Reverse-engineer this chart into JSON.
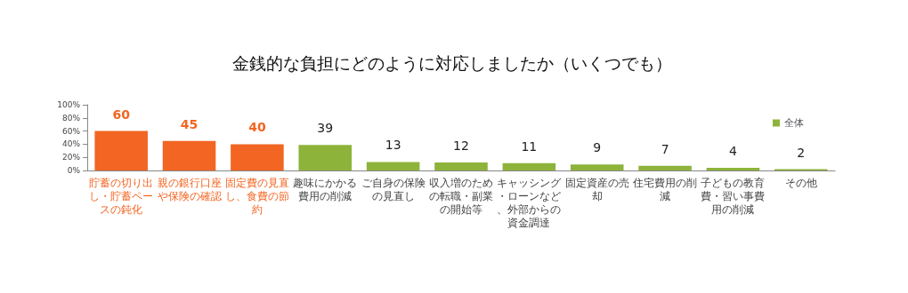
{
  "chart_data": {
    "type": "bar",
    "title": "金銭的な負担にどのように対応しましたか（いくつでも）",
    "categories": [
      "貯蓄の切り出し・貯蓄ペースの鈍化",
      "親の銀行口座や保険の確認",
      "固定費の見直し、食費の節約",
      "趣味にかかる費用の削減",
      "ご自身の保険の見直し",
      "収入増のための転職・副業の開始等",
      "キャッシング・ローンなど、外部からの資金調達",
      "固定資産の売却",
      "住宅費用の削減",
      "子どもの教育費・習い事費用の削減",
      "その他"
    ],
    "series": [
      {
        "name": "全体",
        "color": "#8db33a",
        "values": [
          60,
          45,
          40,
          39,
          13,
          12,
          11,
          9,
          7,
          4,
          2
        ],
        "colors": [
          "#f26522",
          "#f26522",
          "#f26522",
          "#8db33a",
          "#8db33a",
          "#8db33a",
          "#8db33a",
          "#8db33a",
          "#8db33a",
          "#8db33a",
          "#8db33a"
        ]
      }
    ],
    "ylim": [
      0,
      100
    ],
    "yticks": [
      {
        "value": 0,
        "label": "0%"
      },
      {
        "value": 20,
        "label": "20%"
      },
      {
        "value": 40,
        "label": "40%"
      },
      {
        "value": 60,
        "label": "60%"
      },
      {
        "value": 80,
        "label": "80%"
      },
      {
        "value": 100,
        "label": "100%"
      }
    ],
    "data_labels": true,
    "legend": "top right",
    "grid": false
  }
}
